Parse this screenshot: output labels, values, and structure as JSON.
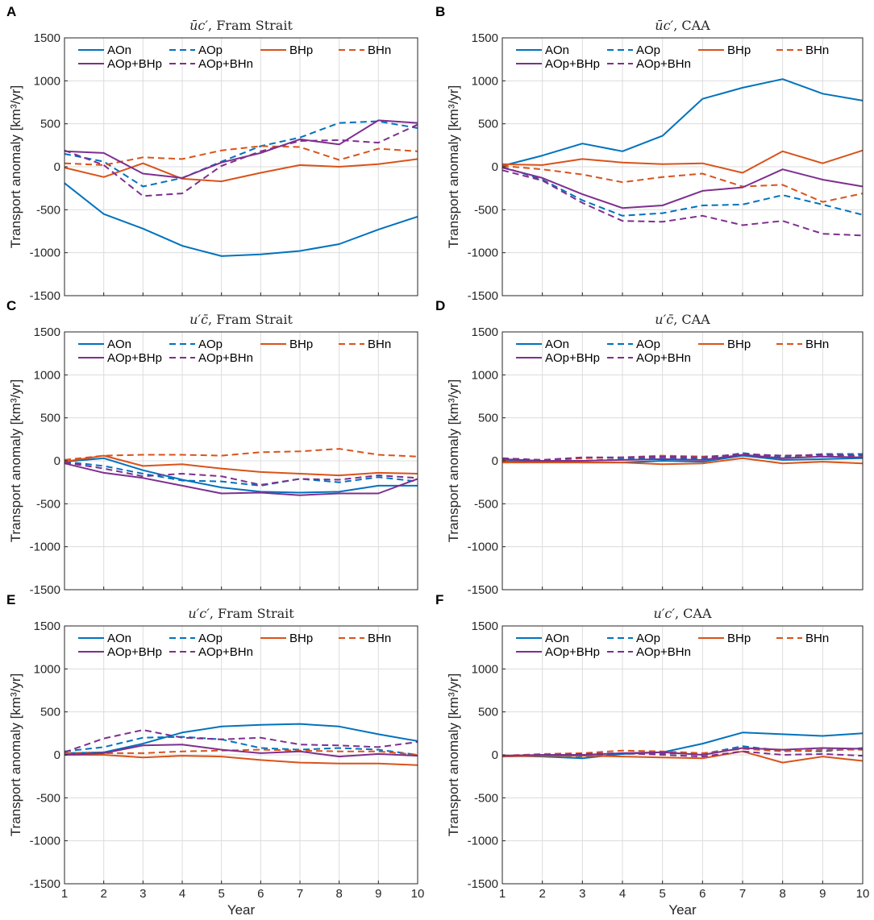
{
  "figure": {
    "xlabel": "Year",
    "ylabel": "Transport anomaly [km³/yr]",
    "xlim": [
      1,
      10
    ],
    "ylim": [
      -1500,
      1500
    ],
    "xticks": [
      1,
      2,
      3,
      4,
      5,
      6,
      7,
      8,
      9,
      10
    ],
    "yticks": [
      -1500,
      -1000,
      -500,
      0,
      500,
      1000,
      1500
    ]
  },
  "series_styles": {
    "AOn": {
      "color": "#0072bd",
      "dash": "solid"
    },
    "AOp": {
      "color": "#0072bd",
      "dash": "dashed"
    },
    "BHp": {
      "color": "#d95319",
      "dash": "solid"
    },
    "BHn": {
      "color": "#d95319",
      "dash": "dashed"
    },
    "AOp+BHp": {
      "color": "#7e2f8e",
      "dash": "solid"
    },
    "AOp+BHn": {
      "color": "#7e2f8e",
      "dash": "dashed"
    }
  },
  "legend_order": [
    "AOn",
    "AOp",
    "BHp",
    "BHn",
    "AOp+BHp",
    "AOp+BHn"
  ],
  "chart_data": [
    {
      "panel": "A",
      "type": "line",
      "title_term": "ūc′",
      "title_region": ", Fram Strait",
      "x": [
        1,
        2,
        3,
        4,
        5,
        6,
        7,
        8,
        9,
        10
      ],
      "series": [
        {
          "name": "AOn",
          "values": [
            -190,
            -550,
            -720,
            -920,
            -1040,
            -1020,
            -980,
            -900,
            -730,
            -580
          ]
        },
        {
          "name": "AOp",
          "values": [
            150,
            60,
            -230,
            -130,
            60,
            240,
            340,
            510,
            530,
            450
          ]
        },
        {
          "name": "BHp",
          "values": [
            -10,
            -120,
            40,
            -140,
            -170,
            -70,
            20,
            0,
            30,
            90
          ]
        },
        {
          "name": "BHn",
          "values": [
            40,
            20,
            110,
            90,
            190,
            240,
            230,
            80,
            210,
            180
          ]
        },
        {
          "name": "AOp+BHp",
          "values": [
            180,
            160,
            -80,
            -130,
            50,
            160,
            320,
            260,
            540,
            510
          ]
        },
        {
          "name": "AOp+BHn",
          "values": [
            190,
            20,
            -340,
            -310,
            10,
            180,
            300,
            310,
            280,
            490
          ]
        }
      ]
    },
    {
      "panel": "B",
      "type": "line",
      "title_term": "ūc′",
      "title_region": ", CAA",
      "x": [
        1,
        2,
        3,
        4,
        5,
        6,
        7,
        8,
        9,
        10
      ],
      "series": [
        {
          "name": "AOn",
          "values": [
            10,
            130,
            270,
            180,
            360,
            790,
            920,
            1020,
            850,
            770
          ]
        },
        {
          "name": "AOp",
          "values": [
            0,
            -150,
            -390,
            -570,
            -540,
            -450,
            -440,
            -330,
            -440,
            -560
          ]
        },
        {
          "name": "BHp",
          "values": [
            30,
            20,
            90,
            50,
            30,
            40,
            -70,
            180,
            40,
            190
          ]
        },
        {
          "name": "BHn",
          "values": [
            10,
            -30,
            -90,
            -180,
            -120,
            -80,
            -230,
            -210,
            -410,
            -310
          ]
        },
        {
          "name": "AOp+BHp",
          "values": [
            -10,
            -130,
            -320,
            -480,
            -450,
            -280,
            -240,
            -30,
            -150,
            -230
          ]
        },
        {
          "name": "AOp+BHn",
          "values": [
            -40,
            -160,
            -420,
            -630,
            -640,
            -570,
            -680,
            -630,
            -780,
            -800
          ]
        }
      ]
    },
    {
      "panel": "C",
      "type": "line",
      "title_term": "u′c̄",
      "title_region": ", Fram Strait",
      "x": [
        1,
        2,
        3,
        4,
        5,
        6,
        7,
        8,
        9,
        10
      ],
      "series": [
        {
          "name": "AOn",
          "values": [
            -10,
            30,
            -110,
            -220,
            -310,
            -360,
            -370,
            -360,
            -290,
            -290
          ]
        },
        {
          "name": "AOp",
          "values": [
            -10,
            -60,
            -150,
            -230,
            -240,
            -290,
            -210,
            -250,
            -190,
            -240
          ]
        },
        {
          "name": "BHp",
          "values": [
            -10,
            60,
            -60,
            -40,
            -90,
            -130,
            -150,
            -170,
            -140,
            -150
          ]
        },
        {
          "name": "BHn",
          "values": [
            10,
            60,
            70,
            70,
            60,
            100,
            110,
            140,
            70,
            50
          ]
        },
        {
          "name": "AOp+BHp",
          "values": [
            -30,
            -140,
            -200,
            -290,
            -380,
            -370,
            -400,
            -380,
            -380,
            -210
          ]
        },
        {
          "name": "AOp+BHn",
          "values": [
            -20,
            -90,
            -180,
            -150,
            -180,
            -280,
            -210,
            -220,
            -170,
            -200
          ]
        }
      ]
    },
    {
      "panel": "D",
      "type": "line",
      "title_term": "u′c̄",
      "title_region": ", CAA",
      "x": [
        1,
        2,
        3,
        4,
        5,
        6,
        7,
        8,
        9,
        10
      ],
      "series": [
        {
          "name": "AOn",
          "values": [
            0,
            -10,
            -20,
            -20,
            0,
            -10,
            60,
            10,
            20,
            30
          ]
        },
        {
          "name": "AOp",
          "values": [
            10,
            10,
            0,
            20,
            40,
            20,
            90,
            40,
            80,
            80
          ]
        },
        {
          "name": "BHp",
          "values": [
            -20,
            -20,
            -20,
            -20,
            -40,
            -30,
            30,
            -30,
            -10,
            -30
          ]
        },
        {
          "name": "BHn",
          "values": [
            10,
            10,
            30,
            40,
            60,
            50,
            70,
            60,
            60,
            60
          ]
        },
        {
          "name": "AOp+BHp",
          "values": [
            20,
            0,
            0,
            10,
            20,
            10,
            70,
            30,
            50,
            40
          ]
        },
        {
          "name": "AOp+BHn",
          "values": [
            30,
            10,
            40,
            40,
            50,
            40,
            80,
            60,
            70,
            60
          ]
        }
      ]
    },
    {
      "panel": "E",
      "type": "line",
      "title_term": "u′c′",
      "title_region": ", Fram Strait",
      "x": [
        1,
        2,
        3,
        4,
        5,
        6,
        7,
        8,
        9,
        10
      ],
      "series": [
        {
          "name": "AOn",
          "values": [
            20,
            30,
            130,
            260,
            330,
            350,
            360,
            330,
            240,
            160
          ]
        },
        {
          "name": "AOp",
          "values": [
            40,
            90,
            200,
            210,
            180,
            80,
            60,
            80,
            60,
            0
          ]
        },
        {
          "name": "BHp",
          "values": [
            0,
            0,
            -30,
            -10,
            -20,
            -60,
            -90,
            -100,
            -100,
            -120
          ]
        },
        {
          "name": "BHn",
          "values": [
            20,
            20,
            20,
            40,
            50,
            60,
            50,
            40,
            40,
            0
          ]
        },
        {
          "name": "AOp+BHp",
          "values": [
            0,
            20,
            110,
            120,
            60,
            20,
            40,
            -20,
            10,
            -10
          ]
        },
        {
          "name": "AOp+BHn",
          "values": [
            30,
            190,
            290,
            200,
            180,
            200,
            120,
            110,
            90,
            150
          ]
        }
      ]
    },
    {
      "panel": "F",
      "type": "line",
      "title_term": "u′c′",
      "title_region": ", CAA",
      "x": [
        1,
        2,
        3,
        4,
        5,
        6,
        7,
        8,
        9,
        10
      ],
      "series": [
        {
          "name": "AOn",
          "values": [
            -10,
            -20,
            -40,
            10,
            30,
            130,
            260,
            240,
            220,
            250
          ]
        },
        {
          "name": "AOp",
          "values": [
            -10,
            0,
            -20,
            10,
            20,
            10,
            100,
            50,
            40,
            80
          ]
        },
        {
          "name": "BHp",
          "values": [
            -20,
            -10,
            -10,
            -20,
            -30,
            -40,
            40,
            -90,
            -20,
            -70
          ]
        },
        {
          "name": "BHn",
          "values": [
            -10,
            10,
            20,
            50,
            40,
            20,
            70,
            40,
            60,
            60
          ]
        },
        {
          "name": "AOp+BHp",
          "values": [
            -10,
            0,
            0,
            20,
            30,
            0,
            80,
            60,
            80,
            70
          ]
        },
        {
          "name": "AOp+BHn",
          "values": [
            -10,
            0,
            10,
            20,
            0,
            -20,
            40,
            0,
            10,
            -10
          ]
        }
      ]
    }
  ]
}
